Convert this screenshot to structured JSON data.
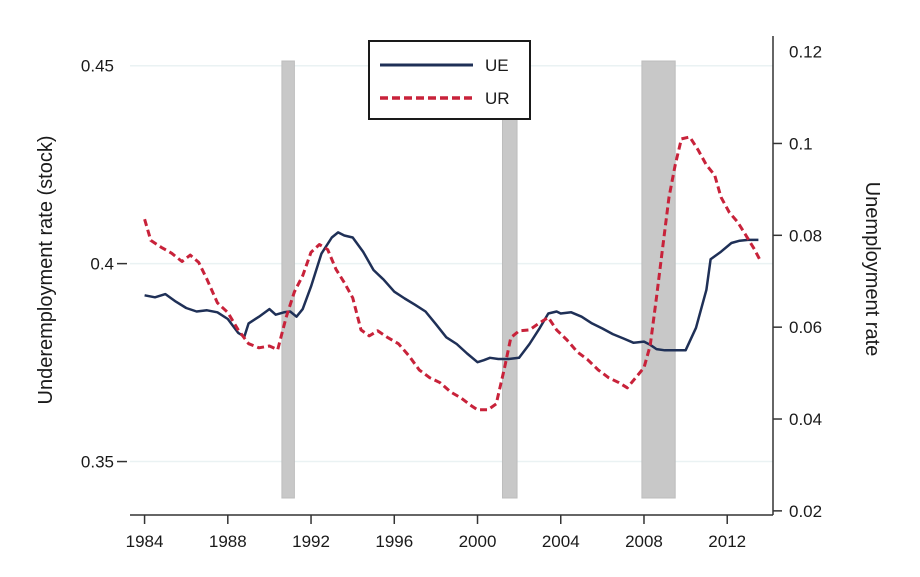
{
  "chart_data": {
    "type": "line",
    "title": "",
    "xlabel": "",
    "ylabel_left": "Underemployment rate (stock)",
    "ylabel_right": "Unemployment rate",
    "xlim": [
      1983.3,
      2014.2
    ],
    "ylim_left": [
      0.3365,
      0.4575
    ],
    "ylim_right": [
      0.0191,
      0.1234
    ],
    "x_ticks": [
      1984,
      1988,
      1992,
      1996,
      2000,
      2004,
      2008,
      2012
    ],
    "x_tick_labels": [
      "1984",
      "1988",
      "1992",
      "1996",
      "2000",
      "2004",
      "2008",
      "2012"
    ],
    "y_left_ticks": [
      0.35,
      0.4,
      0.45
    ],
    "y_left_tick_labels": [
      "0.35",
      "0.4",
      "0.45"
    ],
    "y_right_ticks": [
      0.02,
      0.04,
      0.06,
      0.08,
      0.1,
      0.12
    ],
    "y_right_tick_labels": [
      "0.02",
      "0.04",
      "0.06",
      "0.08",
      "0.1",
      "0.12"
    ],
    "grid": true,
    "legend": {
      "placement": "top-center",
      "entries": [
        "UE",
        "UR"
      ]
    },
    "recessions": [
      {
        "start": 1990.6,
        "end": 1991.2
      },
      {
        "start": 2001.2,
        "end": 2001.9
      },
      {
        "start": 2007.9,
        "end": 2009.5
      }
    ],
    "colors": {
      "UE": "#1f3057",
      "UR": "#c8223a",
      "recession": "#c8c8c8",
      "grid": "#eaf2f3",
      "axis": "#333333"
    },
    "series": [
      {
        "name": "UE",
        "axis": "left",
        "style": "solid",
        "x": [
          1984.0,
          1984.5,
          1985.0,
          1985.5,
          1986.0,
          1986.5,
          1987.0,
          1987.5,
          1988.0,
          1988.5,
          1988.8,
          1989.0,
          1989.5,
          1990.0,
          1990.3,
          1990.7,
          1991.0,
          1991.3,
          1991.6,
          1992.0,
          1992.5,
          1993.0,
          1993.3,
          1993.6,
          1994.0,
          1994.5,
          1995.0,
          1995.5,
          1996.0,
          1996.5,
          1997.0,
          1997.5,
          1998.0,
          1998.5,
          1999.0,
          1999.5,
          2000.0,
          2000.3,
          2000.6,
          2001.0,
          2001.5,
          2002.0,
          2002.5,
          2003.0,
          2003.4,
          2003.8,
          2004.0,
          2004.5,
          2005.0,
          2005.5,
          2006.0,
          2006.5,
          2007.0,
          2007.5,
          2008.0,
          2008.3,
          2008.6,
          2009.0,
          2010.0,
          2010.5,
          2011.0,
          2011.2,
          2011.7,
          2012.2,
          2012.6,
          2013.0,
          2013.5
        ],
        "values": [
          0.392,
          0.3915,
          0.3923,
          0.3904,
          0.3888,
          0.3879,
          0.3882,
          0.3877,
          0.386,
          0.3825,
          0.3816,
          0.3849,
          0.3866,
          0.3885,
          0.3871,
          0.3877,
          0.3879,
          0.3866,
          0.3885,
          0.3942,
          0.4025,
          0.4066,
          0.4079,
          0.4071,
          0.4066,
          0.403,
          0.3984,
          0.3959,
          0.3929,
          0.3912,
          0.3896,
          0.3879,
          0.3847,
          0.3814,
          0.3797,
          0.3773,
          0.3751,
          0.3756,
          0.3762,
          0.3759,
          0.3759,
          0.3762,
          0.3797,
          0.3838,
          0.3874,
          0.3879,
          0.3874,
          0.3877,
          0.3866,
          0.3849,
          0.3836,
          0.3822,
          0.3811,
          0.38,
          0.3803,
          0.3795,
          0.3784,
          0.3781,
          0.3781,
          0.3838,
          0.3934,
          0.4011,
          0.403,
          0.4052,
          0.4058,
          0.406,
          0.406
        ]
      },
      {
        "name": "UR",
        "axis": "right",
        "style": "dashed",
        "x": [
          1984.0,
          1984.3,
          1984.8,
          1985.3,
          1985.8,
          1986.2,
          1986.6,
          1987.0,
          1987.5,
          1988.0,
          1988.5,
          1989.0,
          1989.5,
          1990.0,
          1990.4,
          1990.8,
          1991.2,
          1991.6,
          1992.0,
          1992.4,
          1992.8,
          1993.2,
          1993.6,
          1994.0,
          1994.4,
          1994.8,
          1995.2,
          1995.7,
          1996.2,
          1996.7,
          1997.2,
          1997.7,
          1998.2,
          1998.7,
          1999.2,
          1999.7,
          2000.0,
          2000.5,
          2000.9,
          2001.3,
          2001.6,
          2002.0,
          2002.5,
          2003.0,
          2003.4,
          2003.8,
          2004.3,
          2004.8,
          2005.3,
          2005.8,
          2006.3,
          2006.8,
          2007.2,
          2007.6,
          2008.0,
          2008.3,
          2008.6,
          2008.9,
          2009.2,
          2009.5,
          2009.8,
          2010.2,
          2010.6,
          2011.0,
          2011.4,
          2011.7,
          2012.1,
          2012.5,
          2012.9,
          2013.3,
          2013.6
        ],
        "values": [
          0.0835,
          0.0789,
          0.0774,
          0.0761,
          0.0743,
          0.0757,
          0.0741,
          0.0704,
          0.0653,
          0.0632,
          0.0594,
          0.0564,
          0.0555,
          0.0559,
          0.0551,
          0.0621,
          0.0677,
          0.0712,
          0.0763,
          0.078,
          0.0769,
          0.0726,
          0.0697,
          0.0664,
          0.0594,
          0.0581,
          0.0592,
          0.0577,
          0.0564,
          0.0538,
          0.0507,
          0.049,
          0.0479,
          0.0459,
          0.0446,
          0.0429,
          0.042,
          0.042,
          0.0433,
          0.0512,
          0.0577,
          0.0592,
          0.0594,
          0.061,
          0.0621,
          0.0594,
          0.0572,
          0.0546,
          0.0529,
          0.0507,
          0.049,
          0.0479,
          0.0468,
          0.049,
          0.0512,
          0.056,
          0.0665,
          0.0774,
          0.0883,
          0.0953,
          0.101,
          0.1014,
          0.0986,
          0.0953,
          0.0931,
          0.0883,
          0.085,
          0.0829,
          0.08,
          0.077,
          0.0744
        ]
      }
    ]
  }
}
